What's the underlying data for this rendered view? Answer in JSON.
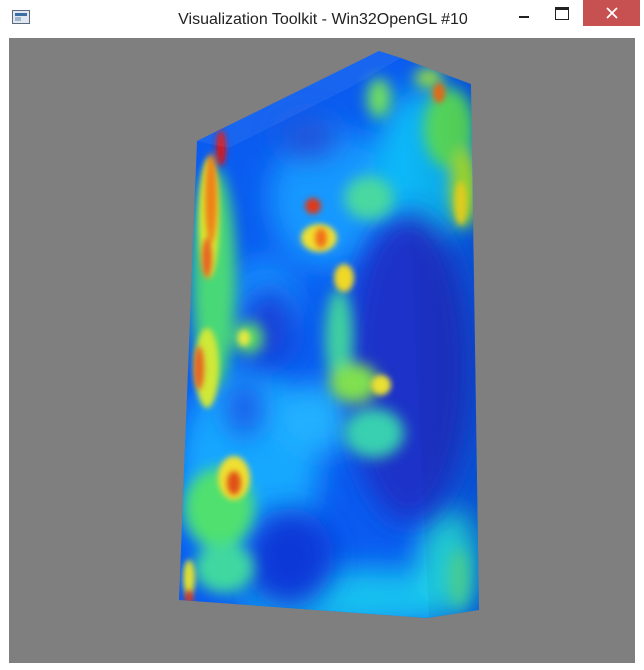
{
  "window": {
    "title": "Visualization Toolkit - Win32OpenGL #10",
    "icon": "vtk-window-icon",
    "controls": {
      "minimize": "minimize-icon",
      "maximize": "maximize-icon",
      "close": "close-icon"
    }
  },
  "viewport": {
    "background": "#7f7f7f",
    "scene": "volume-rendered-slab",
    "colormap": [
      "#0010c0",
      "#0060ff",
      "#00c8ff",
      "#2ee0a0",
      "#a8ee30",
      "#f8e820",
      "#f08018",
      "#d81818"
    ]
  }
}
